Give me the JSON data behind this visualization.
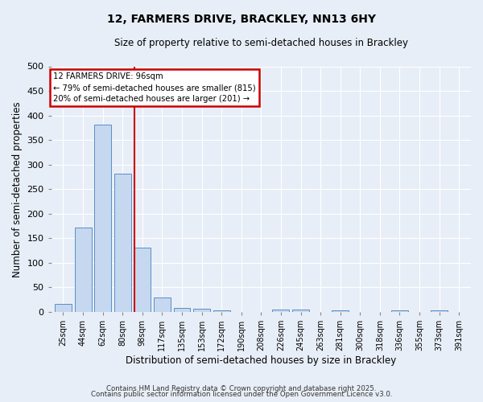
{
  "title1": "12, FARMERS DRIVE, BRACKLEY, NN13 6HY",
  "title2": "Size of property relative to semi-detached houses in Brackley",
  "xlabel": "Distribution of semi-detached houses by size in Brackley",
  "ylabel": "Number of semi-detached properties",
  "categories": [
    "25sqm",
    "44sqm",
    "62sqm",
    "80sqm",
    "98sqm",
    "117sqm",
    "135sqm",
    "153sqm",
    "172sqm",
    "190sqm",
    "208sqm",
    "226sqm",
    "245sqm",
    "263sqm",
    "281sqm",
    "300sqm",
    "318sqm",
    "336sqm",
    "355sqm",
    "373sqm",
    "391sqm"
  ],
  "values": [
    17,
    172,
    381,
    281,
    131,
    29,
    9,
    6,
    4,
    0,
    0,
    5,
    5,
    0,
    3,
    0,
    0,
    3,
    0,
    3,
    0
  ],
  "bar_color": "#c5d8f0",
  "bar_edge_color": "#5b8ec4",
  "vline_color": "#cc0000",
  "vline_pos": 3.6,
  "annotation_title": "12 FARMERS DRIVE: 96sqm",
  "annotation_line1": "← 79% of semi-detached houses are smaller (815)",
  "annotation_line2": "20% of semi-detached houses are larger (201) →",
  "annotation_box_color": "#cc0000",
  "background_color": "#e8eef7",
  "grid_color": "#ffffff",
  "footer1": "Contains HM Land Registry data © Crown copyright and database right 2025.",
  "footer2": "Contains public sector information licensed under the Open Government Licence v3.0.",
  "ylim": [
    0,
    500
  ],
  "yticks": [
    0,
    50,
    100,
    150,
    200,
    250,
    300,
    350,
    400,
    450,
    500
  ]
}
